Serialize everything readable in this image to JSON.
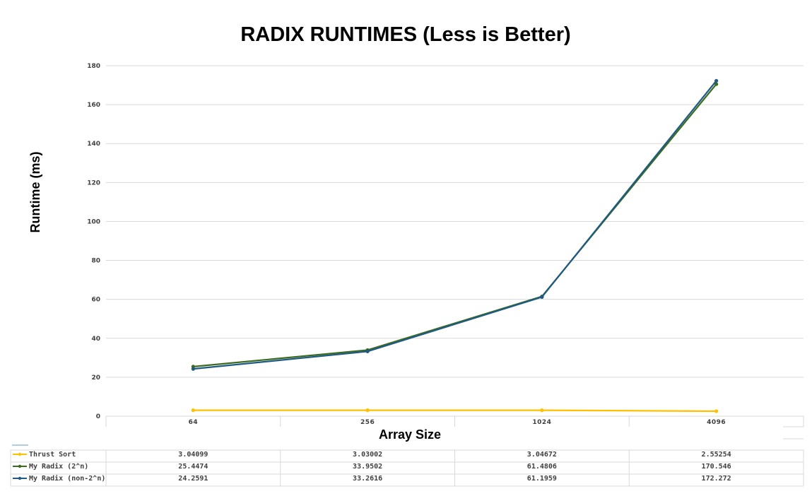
{
  "chart_data": {
    "type": "line",
    "title": "RADIX RUNTIMES (Less is Better)",
    "xlabel": "Array Size",
    "ylabel": "Runtime (ms)",
    "categories": [
      "64",
      "256",
      "1024",
      "4096"
    ],
    "ylim": [
      0,
      180
    ],
    "yticks": [
      "0",
      "20",
      "40",
      "60",
      "80",
      "100",
      "120",
      "140",
      "160",
      "180"
    ],
    "grid": true,
    "legend": "data-table",
    "series": [
      {
        "name": "Thrust Sort",
        "color": "#ffc000",
        "values": [
          3.04099,
          3.03002,
          3.04672,
          2.55254
        ],
        "labels": [
          "3.04099",
          "3.03002",
          "3.04672",
          "2.55254"
        ]
      },
      {
        "name": "My Radix (2^n)",
        "color": "#3a6b1f",
        "values": [
          25.4474,
          33.9502,
          61.4806,
          170.546
        ],
        "labels": [
          "25.4474",
          "33.9502",
          "61.4806",
          "170.546"
        ]
      },
      {
        "name": "My Radix (non-2^n)",
        "color": "#1f5a85",
        "values": [
          24.2591,
          33.2616,
          61.1959,
          172.272
        ],
        "labels": [
          "24.2591",
          "33.2616",
          "61.1959",
          "172.272"
        ]
      }
    ]
  }
}
